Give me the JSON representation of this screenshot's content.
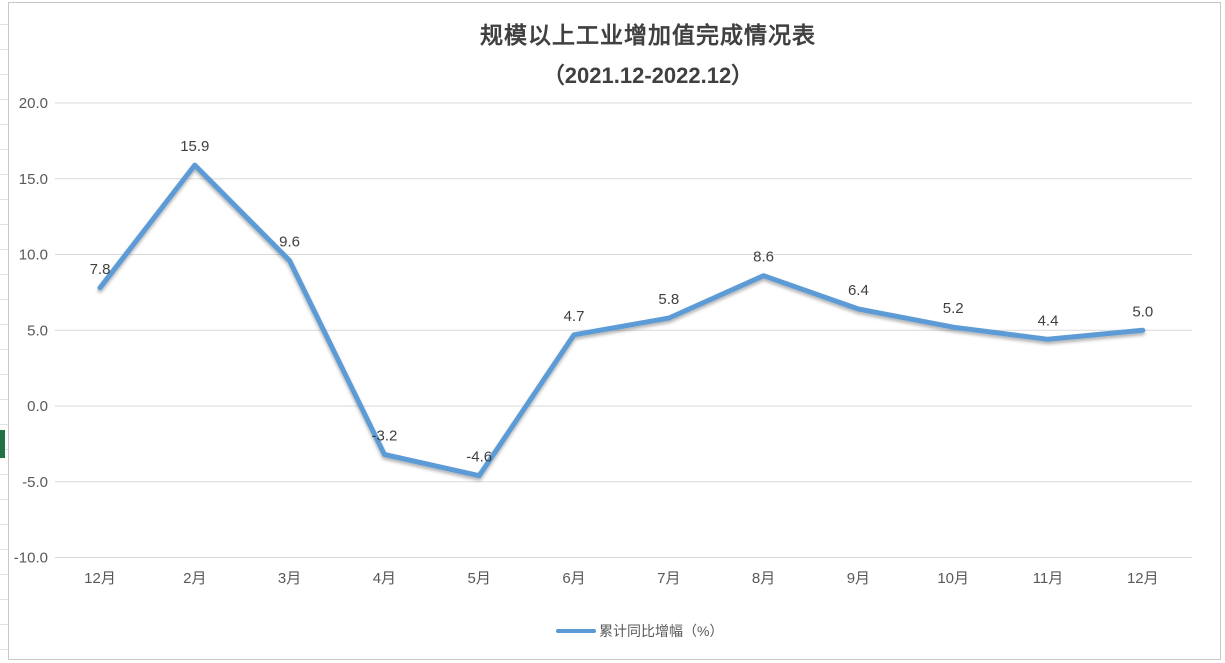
{
  "colors": {
    "accent_line": "#5B9BD5",
    "title_text": "#404040",
    "axis_text": "#595959",
    "data_label_text": "#404040",
    "gridline": "#D9D9D9",
    "frame_border": "#C8C8C8",
    "sheet_row_line": "#E2E2E2",
    "selection_mark": "#217346"
  },
  "chart_data": {
    "type": "line",
    "title": "规模以上工业增加值完成情况表",
    "subtitle": "（2021.12-2022.12）",
    "categories": [
      "12月",
      "2月",
      "3月",
      "4月",
      "5月",
      "6月",
      "7月",
      "8月",
      "9月",
      "10月",
      "11月",
      "12月"
    ],
    "series": [
      {
        "name": "累计同比增幅（%）",
        "color": "#5B9BD5",
        "values": [
          7.8,
          15.9,
          9.6,
          -3.2,
          -4.6,
          4.7,
          5.8,
          8.6,
          6.4,
          5.2,
          4.4,
          5.0
        ],
        "labels": [
          "7.8",
          "15.9",
          "9.6",
          "-3.2",
          "-4.6",
          "4.7",
          "5.8",
          "8.6",
          "6.4",
          "5.2",
          "4.4",
          "5.0"
        ]
      }
    ],
    "y_ticks": [
      20,
      15,
      10,
      5,
      0,
      -5,
      -10
    ],
    "y_tick_labels": [
      "20.0",
      "15.0",
      "10.0",
      "5.0",
      "0.0",
      "-5.0",
      "-10.0"
    ],
    "ylim": [
      -10,
      20
    ],
    "grid": true,
    "legend_position": "bottom",
    "xlabel": "",
    "ylabel": ""
  }
}
